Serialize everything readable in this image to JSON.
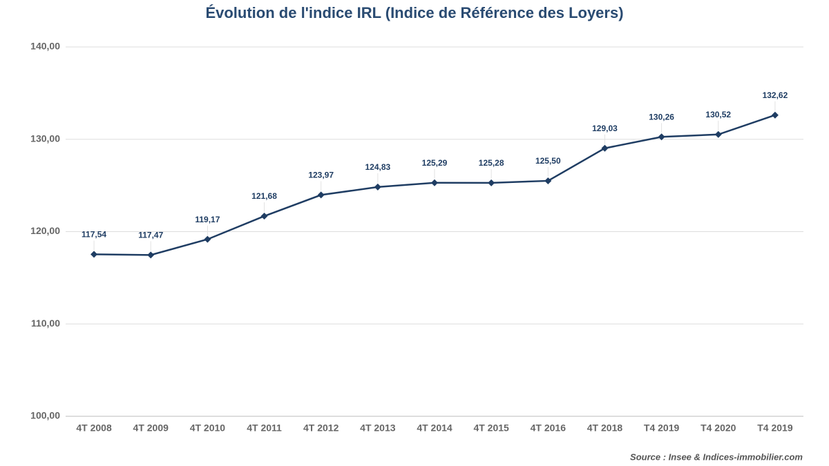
{
  "chart_data": {
    "type": "line",
    "title": "Évolution de l'indice IRL (Indice de Référence des Loyers)",
    "source": "Source : Insee & Indices-immobilier.com",
    "categories": [
      "4T 2008",
      "4T 2009",
      "4T 2010",
      "4T 2011",
      "4T 2012",
      "4T 2013",
      "4T 2014",
      "4T 2015",
      "4T 2016",
      "4T 2018",
      "T4 2019",
      "T4 2020",
      "T4 2019"
    ],
    "values": [
      117.54,
      117.47,
      119.17,
      121.68,
      123.97,
      124.83,
      125.29,
      125.28,
      125.5,
      129.03,
      130.26,
      130.52,
      132.62
    ],
    "value_labels": [
      "117,54",
      "117,47",
      "119,17",
      "121,68",
      "123,97",
      "124,83",
      "125,29",
      "125,28",
      "125,50",
      "129,03",
      "130,26",
      "130,52",
      "132,62"
    ],
    "color": "#1f3d63",
    "ylim": [
      100,
      140
    ],
    "yticks": [
      {
        "value": 100,
        "label": "100,00"
      },
      {
        "value": 110,
        "label": "110,00"
      },
      {
        "value": 120,
        "label": "120,00"
      },
      {
        "value": 130,
        "label": "130,00"
      },
      {
        "value": 140,
        "label": "140,00"
      }
    ],
    "grid": true
  }
}
